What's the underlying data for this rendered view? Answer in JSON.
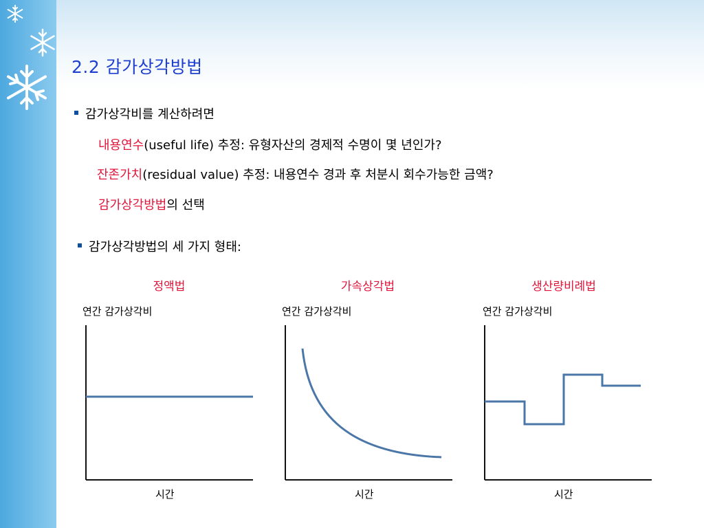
{
  "slide": {
    "title": "2.2  감가상각방법",
    "bullet1": "감가상각비를 계산하려면",
    "items": [
      {
        "term": "내용연수",
        "rest": "(useful life) 추정:  유형자산의 경제적 수명이 몇 년인가?"
      },
      {
        "term": "잔존가치",
        "rest": "(residual value) 추정:  내용연수 경과 후 처분시 회수가능한 금액?"
      },
      {
        "term": "감가상각방법",
        "rest": "의 선택"
      }
    ],
    "bullet2": "감가상각방법의 세 가지 형태:"
  },
  "methods": [
    {
      "name": "정액법",
      "ylabel": "연간 감가상각비",
      "xlabel": "시간"
    },
    {
      "name": "가속상각법",
      "ylabel": "연간 감가상각비",
      "xlabel": "시간"
    },
    {
      "name": "생산량비례법",
      "ylabel": "연간 감가상각비",
      "xlabel": "시간"
    }
  ],
  "colors": {
    "title": "#1f3fd0",
    "accent_red": "#e0153a",
    "curve": "#4a76a8",
    "side_band": "#5aaee0"
  },
  "icons": [
    "snowflake-icon",
    "bullet-square-icon"
  ]
}
